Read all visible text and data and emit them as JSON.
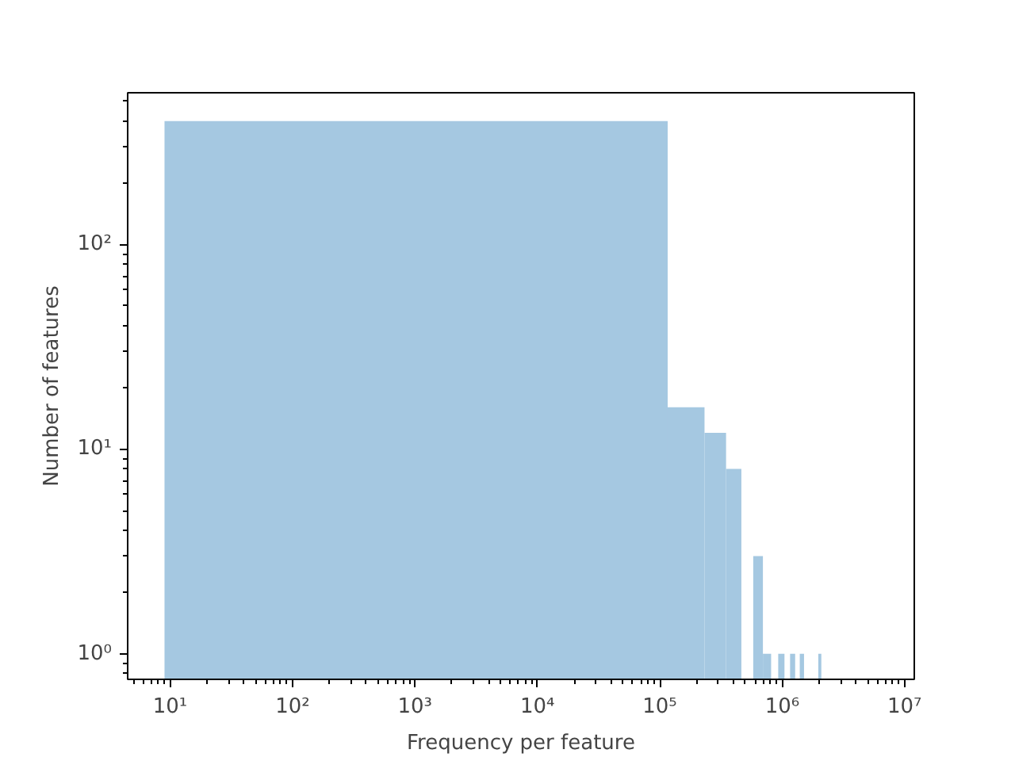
{
  "chart_data": {
    "type": "histogram",
    "xlabel": "Frequency per feature",
    "ylabel": "Number of features",
    "log": "xy",
    "grid": false,
    "color": "#a5c8e1",
    "bins": [
      9,
      116009,
      232009,
      348009,
      464009,
      580009,
      696009,
      812009,
      928009,
      1044009,
      1160009,
      1276009,
      1392009,
      1508009,
      1972009,
      2088009
    ],
    "values": [
      400,
      16,
      12,
      8,
      null,
      3,
      1,
      null,
      1,
      null,
      1,
      null,
      1,
      null,
      1
    ],
    "xlim": [
      4.5,
      12000000
    ],
    "ylim": [
      0.75,
      550
    ],
    "xticks": [
      {
        "value": 10,
        "label": "10¹"
      },
      {
        "value": 100,
        "label": "10²"
      },
      {
        "value": 1000,
        "label": "10³"
      },
      {
        "value": 10000,
        "label": "10⁴"
      },
      {
        "value": 100000,
        "label": "10⁵"
      },
      {
        "value": 1000000,
        "label": "10⁶"
      },
      {
        "value": 10000000,
        "label": "10⁷"
      }
    ],
    "yticks": [
      {
        "value": 1,
        "label": "10⁰"
      },
      {
        "value": 10,
        "label": "10¹"
      },
      {
        "value": 100,
        "label": "10²"
      }
    ]
  }
}
